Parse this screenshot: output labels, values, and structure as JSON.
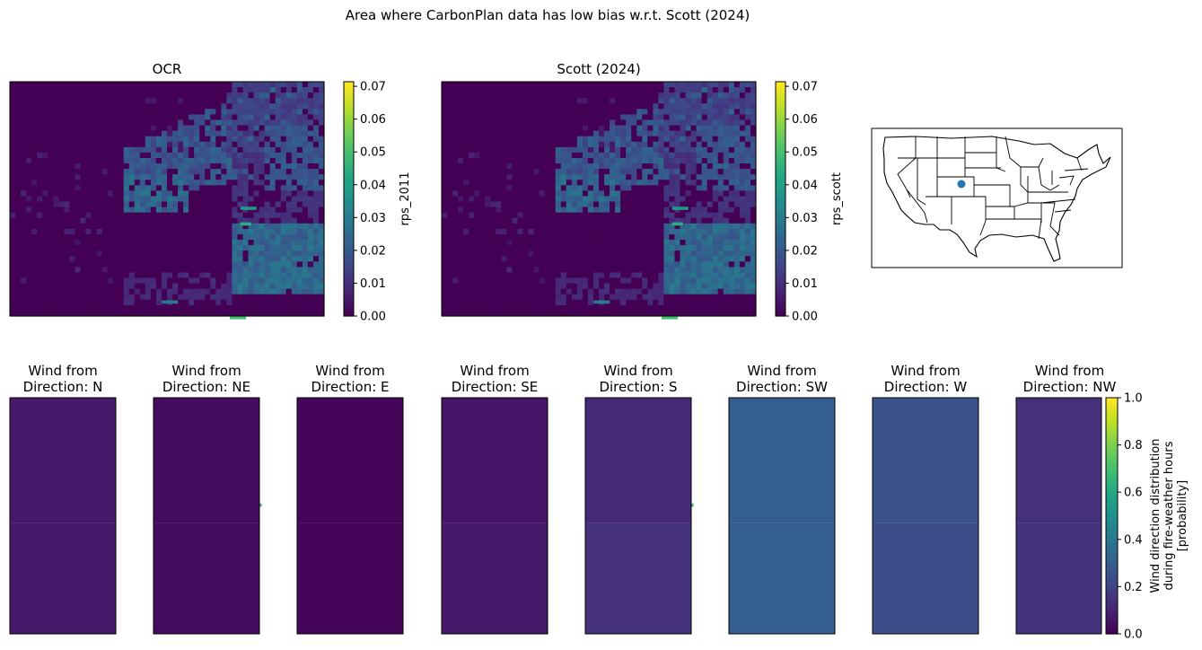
{
  "suptitle": "Area where CarbonPlan data has low bias w.r.t. Scott (2024)",
  "chart_data": [
    {
      "type": "heatmap",
      "title": "OCR",
      "colorbar_label": "rps_2011",
      "colormap": "viridis",
      "clim": [
        0,
        0.0714
      ],
      "colorbar_ticks": [
        "0.00",
        "0.01",
        "0.02",
        "0.03",
        "0.04",
        "0.05",
        "0.06",
        "0.07"
      ],
      "axes": "off"
    },
    {
      "type": "heatmap",
      "title": "Scott (2024)",
      "colorbar_label": "rps_scott",
      "colormap": "viridis",
      "clim": [
        0,
        0.0714
      ],
      "colorbar_ticks": [
        "0.00",
        "0.01",
        "0.02",
        "0.03",
        "0.04",
        "0.05",
        "0.06",
        "0.07"
      ],
      "axes": "off"
    },
    {
      "type": "map",
      "region": "Contiguous United States (state borders)",
      "marker_color": "#1f77b4",
      "marker_location": "southeastern Colorado"
    },
    {
      "type": "heatmap",
      "colormap": "viridis",
      "clim": [
        0,
        1
      ],
      "colorbar_label": [
        "Wind direction distribution",
        "during fire-weather hours",
        "[probability]"
      ],
      "colorbar_ticks": [
        "0.0",
        "0.2",
        "0.4",
        "0.6",
        "0.8",
        "1.0"
      ],
      "panels": [
        {
          "title": [
            "Wind from",
            "Direction: N"
          ],
          "value": 0.07,
          "value_lower": 0.07
        },
        {
          "title": [
            "Wind from",
            "Direction: NE"
          ],
          "value": 0.03,
          "value_lower": 0.03
        },
        {
          "title": [
            "Wind from",
            "Direction: E"
          ],
          "value": 0.015,
          "value_lower": 0.015
        },
        {
          "title": [
            "Wind from",
            "Direction: SE"
          ],
          "value": 0.06,
          "value_lower": 0.07
        },
        {
          "title": [
            "Wind from",
            "Direction: S"
          ],
          "value": 0.12,
          "value_lower": 0.14
        },
        {
          "title": [
            "Wind from",
            "Direction: SW"
          ],
          "value": 0.3,
          "value_lower": 0.3
        },
        {
          "title": [
            "Wind from",
            "Direction: W"
          ],
          "value": 0.25,
          "value_lower": 0.24
        },
        {
          "title": [
            "Wind from",
            "Direction: NW"
          ],
          "value": 0.14,
          "value_lower": 0.15
        }
      ]
    }
  ]
}
